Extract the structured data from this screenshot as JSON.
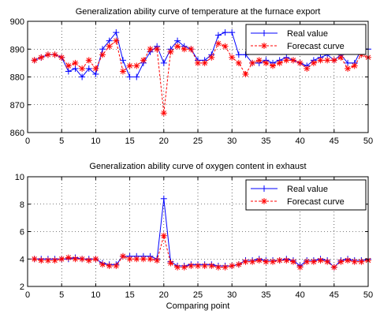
{
  "chart_data": [
    {
      "type": "line",
      "title": "Generalization ability curve of temperature at the furnace export",
      "xlabel": "",
      "ylabel": "",
      "xlim": [
        0,
        50
      ],
      "ylim": [
        860,
        900
      ],
      "xticks": [
        0,
        5,
        10,
        15,
        20,
        25,
        30,
        35,
        40,
        45,
        50
      ],
      "yticks": [
        860,
        870,
        880,
        890,
        900
      ],
      "grid": true,
      "legend_position": "top-right",
      "series": [
        {
          "name": "Real value",
          "color": "#0000ff",
          "marker": "plus",
          "line_style": "solid",
          "x": [
            1,
            2,
            3,
            4,
            5,
            6,
            7,
            8,
            9,
            10,
            11,
            12,
            13,
            14,
            15,
            16,
            17,
            18,
            19,
            20,
            21,
            22,
            23,
            24,
            25,
            26,
            27,
            28,
            29,
            30,
            31,
            32,
            33,
            34,
            35,
            36,
            37,
            38,
            39,
            40,
            41,
            42,
            43,
            44,
            45,
            46,
            47,
            48,
            49,
            50
          ],
          "values": [
            886,
            887,
            888,
            888,
            887,
            882,
            883,
            880,
            883,
            881,
            890,
            893,
            896,
            886,
            880,
            880,
            885,
            889,
            891,
            885,
            890,
            893,
            891,
            890,
            886,
            886,
            888,
            895,
            896,
            896,
            888,
            888,
            885,
            885,
            886,
            885,
            886,
            887,
            886,
            885,
            884,
            886,
            887,
            888,
            886,
            888,
            885,
            885,
            890,
            890
          ]
        },
        {
          "name": "Forecast curve",
          "color": "#ff0000",
          "marker": "star",
          "line_style": "dashed",
          "x": [
            1,
            2,
            3,
            4,
            5,
            6,
            7,
            8,
            9,
            10,
            11,
            12,
            13,
            14,
            15,
            16,
            17,
            18,
            19,
            20,
            21,
            22,
            23,
            24,
            25,
            26,
            27,
            28,
            29,
            30,
            31,
            32,
            33,
            34,
            35,
            36,
            37,
            38,
            39,
            40,
            41,
            42,
            43,
            44,
            45,
            46,
            47,
            48,
            49,
            50
          ],
          "values": [
            886,
            887,
            888,
            888,
            887,
            884,
            885,
            883,
            886,
            883,
            888,
            891,
            893,
            882,
            884,
            884,
            886,
            890,
            890,
            867,
            889,
            891,
            890,
            890,
            885,
            885,
            887,
            892,
            891,
            887,
            885,
            881,
            885,
            886,
            885,
            884,
            885,
            886,
            886,
            885,
            883,
            885,
            886,
            886,
            886,
            887,
            883,
            884,
            888,
            887
          ]
        }
      ]
    },
    {
      "type": "line",
      "title": "Generalization ability curve of oxygen content in exhaust",
      "xlabel": "Comparing point",
      "ylabel": "",
      "xlim": [
        0,
        50
      ],
      "ylim": [
        2,
        10
      ],
      "xticks": [
        0,
        5,
        10,
        15,
        20,
        25,
        30,
        35,
        40,
        45,
        50
      ],
      "yticks": [
        2,
        4,
        6,
        8,
        10
      ],
      "grid": true,
      "legend_position": "top-right",
      "series": [
        {
          "name": "Real value",
          "color": "#0000ff",
          "marker": "plus",
          "line_style": "solid",
          "x": [
            1,
            2,
            3,
            4,
            5,
            6,
            7,
            8,
            9,
            10,
            11,
            12,
            13,
            14,
            15,
            16,
            17,
            18,
            19,
            20,
            21,
            22,
            23,
            24,
            25,
            26,
            27,
            28,
            29,
            30,
            31,
            32,
            33,
            34,
            35,
            36,
            37,
            38,
            39,
            40,
            41,
            42,
            43,
            44,
            45,
            46,
            47,
            48,
            49,
            50
          ],
          "values": [
            4.0,
            4.0,
            4.0,
            4.0,
            4.0,
            4.0,
            4.1,
            4.0,
            4.0,
            4.0,
            3.7,
            3.6,
            3.6,
            4.2,
            4.2,
            4.2,
            4.2,
            4.2,
            4.0,
            8.4,
            3.8,
            3.5,
            3.5,
            3.6,
            3.6,
            3.6,
            3.6,
            3.5,
            3.5,
            3.5,
            3.6,
            3.9,
            3.9,
            4.0,
            3.9,
            3.9,
            3.9,
            4.0,
            3.9,
            3.5,
            3.9,
            3.9,
            4.0,
            3.9,
            3.4,
            3.9,
            4.0,
            3.9,
            3.9,
            4.0
          ]
        },
        {
          "name": "Forecast curve",
          "color": "#ff0000",
          "marker": "star",
          "line_style": "dashed",
          "x": [
            1,
            2,
            3,
            4,
            5,
            6,
            7,
            8,
            9,
            10,
            11,
            12,
            13,
            14,
            15,
            16,
            17,
            18,
            19,
            20,
            21,
            22,
            23,
            24,
            25,
            26,
            27,
            28,
            29,
            30,
            31,
            32,
            33,
            34,
            35,
            36,
            37,
            38,
            39,
            40,
            41,
            42,
            43,
            44,
            45,
            46,
            47,
            48,
            49,
            50
          ],
          "values": [
            4.0,
            3.9,
            3.9,
            3.9,
            4.0,
            4.1,
            4.0,
            4.0,
            3.9,
            4.0,
            3.6,
            3.5,
            3.5,
            4.2,
            4.0,
            4.0,
            4.0,
            4.0,
            3.9,
            5.7,
            3.7,
            3.4,
            3.4,
            3.5,
            3.5,
            3.5,
            3.5,
            3.4,
            3.4,
            3.5,
            3.6,
            3.8,
            3.8,
            3.9,
            3.8,
            3.8,
            3.9,
            3.9,
            3.8,
            3.4,
            3.8,
            3.8,
            3.9,
            3.8,
            3.4,
            3.8,
            3.9,
            3.8,
            3.8,
            3.9
          ]
        }
      ]
    }
  ]
}
